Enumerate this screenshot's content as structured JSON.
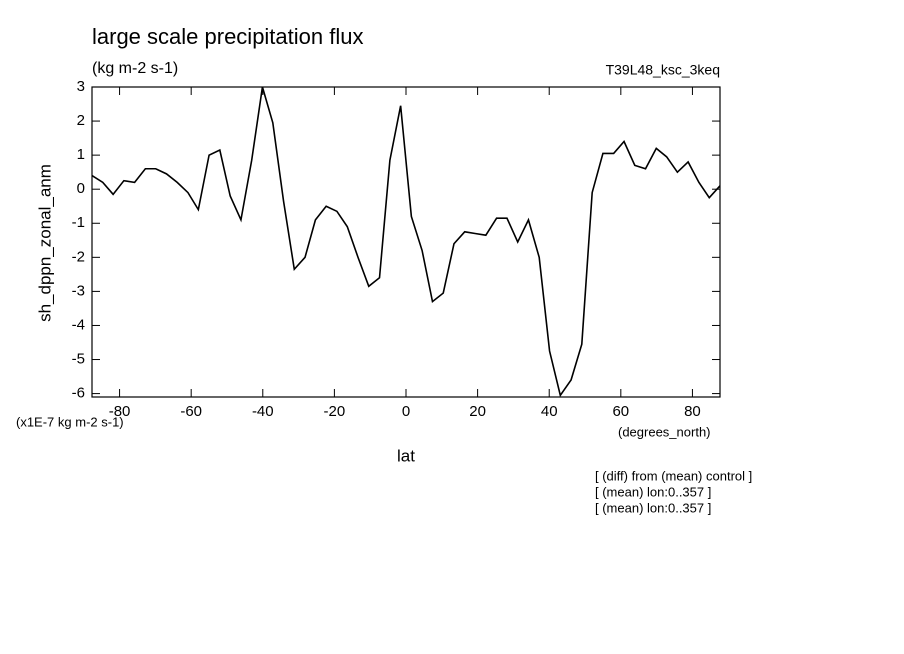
{
  "chart_data": {
    "type": "line",
    "title": "large scale precipitation flux",
    "subtitle": "(kg m-2 s-1)",
    "experiment": "T39L48_ksc_3keq",
    "y_label": "sh_dppn_zonal_anm",
    "y_units": "(x1E-7 kg m-2 s-1)",
    "x_label": "lat",
    "x_units": "(degrees_north)",
    "notes": [
      "[ (diff) from (mean) control ]",
      "[ (mean) lon:0..357 ]",
      "[ (mean) lon:0..357 ]"
    ],
    "x": [
      -87.7,
      -84.7,
      -81.8,
      -78.8,
      -75.8,
      -72.8,
      -69.9,
      -66.9,
      -63.9,
      -60.9,
      -58.0,
      -55.0,
      -52.0,
      -49.1,
      -46.1,
      -43.1,
      -40.1,
      -37.2,
      -34.2,
      -31.2,
      -28.2,
      -25.3,
      -22.3,
      -19.3,
      -16.4,
      -13.4,
      -10.4,
      -7.4,
      -4.5,
      -1.5,
      1.5,
      4.5,
      7.4,
      10.4,
      13.4,
      16.4,
      19.3,
      22.3,
      25.3,
      28.2,
      31.2,
      34.2,
      37.2,
      40.1,
      43.1,
      46.1,
      49.1,
      52.0,
      55.0,
      58.0,
      60.9,
      63.9,
      66.9,
      69.9,
      72.8,
      75.8,
      78.8,
      81.8,
      84.7,
      87.7
    ],
    "series": [
      {
        "color": "#000000",
        "values": [
          0.4,
          0.2,
          -0.15,
          0.25,
          0.2,
          0.6,
          0.6,
          0.45,
          0.2,
          -0.1,
          -0.6,
          1.0,
          1.15,
          -0.2,
          -0.9,
          0.85,
          3.0,
          1.95,
          -0.35,
          -2.35,
          -2.0,
          -0.9,
          -0.5,
          -0.65,
          -1.1,
          -2.0,
          -2.85,
          -2.6,
          0.85,
          2.45,
          -0.8,
          -1.8,
          -3.3,
          -3.05,
          -1.6,
          -1.25,
          -1.3,
          -1.35,
          -0.85,
          -0.85,
          -1.55,
          -0.9,
          -2.0,
          -4.75,
          -6.05,
          -5.6,
          -4.55,
          -0.1,
          1.05,
          1.05,
          1.4,
          0.7,
          0.6,
          1.2,
          0.95,
          0.5,
          0.8,
          0.2,
          -0.25,
          0.1
        ]
      }
    ],
    "xlim": [
      -87.7,
      87.7
    ],
    "xticks": [
      -80,
      -60,
      -40,
      -20,
      0,
      20,
      40,
      60,
      80
    ],
    "ylim": [
      -6.1,
      3
    ],
    "yticks": [
      -6,
      -5,
      -4,
      -3,
      -2,
      -1,
      0,
      1,
      2,
      3
    ],
    "grid": false
  }
}
